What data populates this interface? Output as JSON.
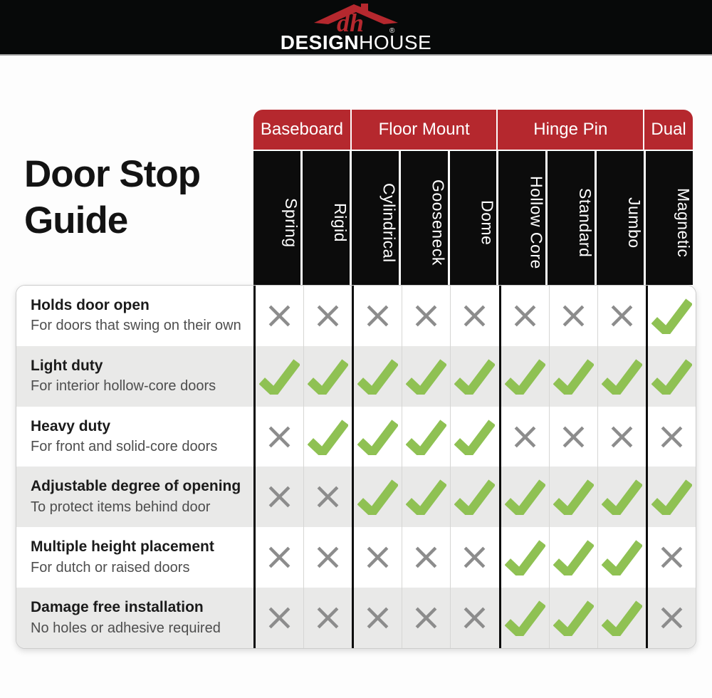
{
  "brand": {
    "logo_mark": "dh",
    "registered": "®",
    "name_bold": "DESIGN",
    "name_light": "HOUSE"
  },
  "title": "Door Stop Guide",
  "colors": {
    "red": "#b5282e",
    "black": "#0c0c0c",
    "check_green": "#8fc153",
    "x_gray": "#8c8c8c",
    "row_alt": "#e9e9e8"
  },
  "table": {
    "groups": [
      {
        "label": "Baseboard",
        "span": 2
      },
      {
        "label": "Floor Mount",
        "span": 3
      },
      {
        "label": "Hinge Pin",
        "span": 3
      },
      {
        "label": "Dual",
        "span": 1
      }
    ],
    "columns": [
      "Spring",
      "Rigid",
      "Cylindrical",
      "Gooseneck",
      "Dome",
      "Hollow Core",
      "Standard",
      "Jumbo",
      "Magnetic"
    ],
    "group_start_columns": [
      0,
      2,
      5,
      8
    ],
    "rows": [
      {
        "feature": "Holds door open",
        "description": "For doors that swing on their own",
        "values": [
          false,
          false,
          false,
          false,
          false,
          false,
          false,
          false,
          true
        ]
      },
      {
        "feature": "Light duty",
        "description": "For interior hollow-core doors",
        "values": [
          true,
          true,
          true,
          true,
          true,
          true,
          true,
          true,
          true
        ]
      },
      {
        "feature": "Heavy duty",
        "description": "For front and solid-core doors",
        "values": [
          false,
          true,
          true,
          true,
          true,
          false,
          false,
          false,
          false
        ]
      },
      {
        "feature": "Adjustable degree of opening",
        "description": "To protect items behind door",
        "values": [
          false,
          false,
          true,
          true,
          true,
          true,
          true,
          true,
          true
        ]
      },
      {
        "feature": "Multiple height placement",
        "description": "For dutch or raised doors",
        "values": [
          false,
          false,
          false,
          false,
          false,
          true,
          true,
          true,
          false
        ]
      },
      {
        "feature": "Damage free installation",
        "description": "No holes or adhesive required",
        "values": [
          false,
          false,
          false,
          false,
          false,
          true,
          true,
          true,
          false
        ]
      }
    ]
  }
}
